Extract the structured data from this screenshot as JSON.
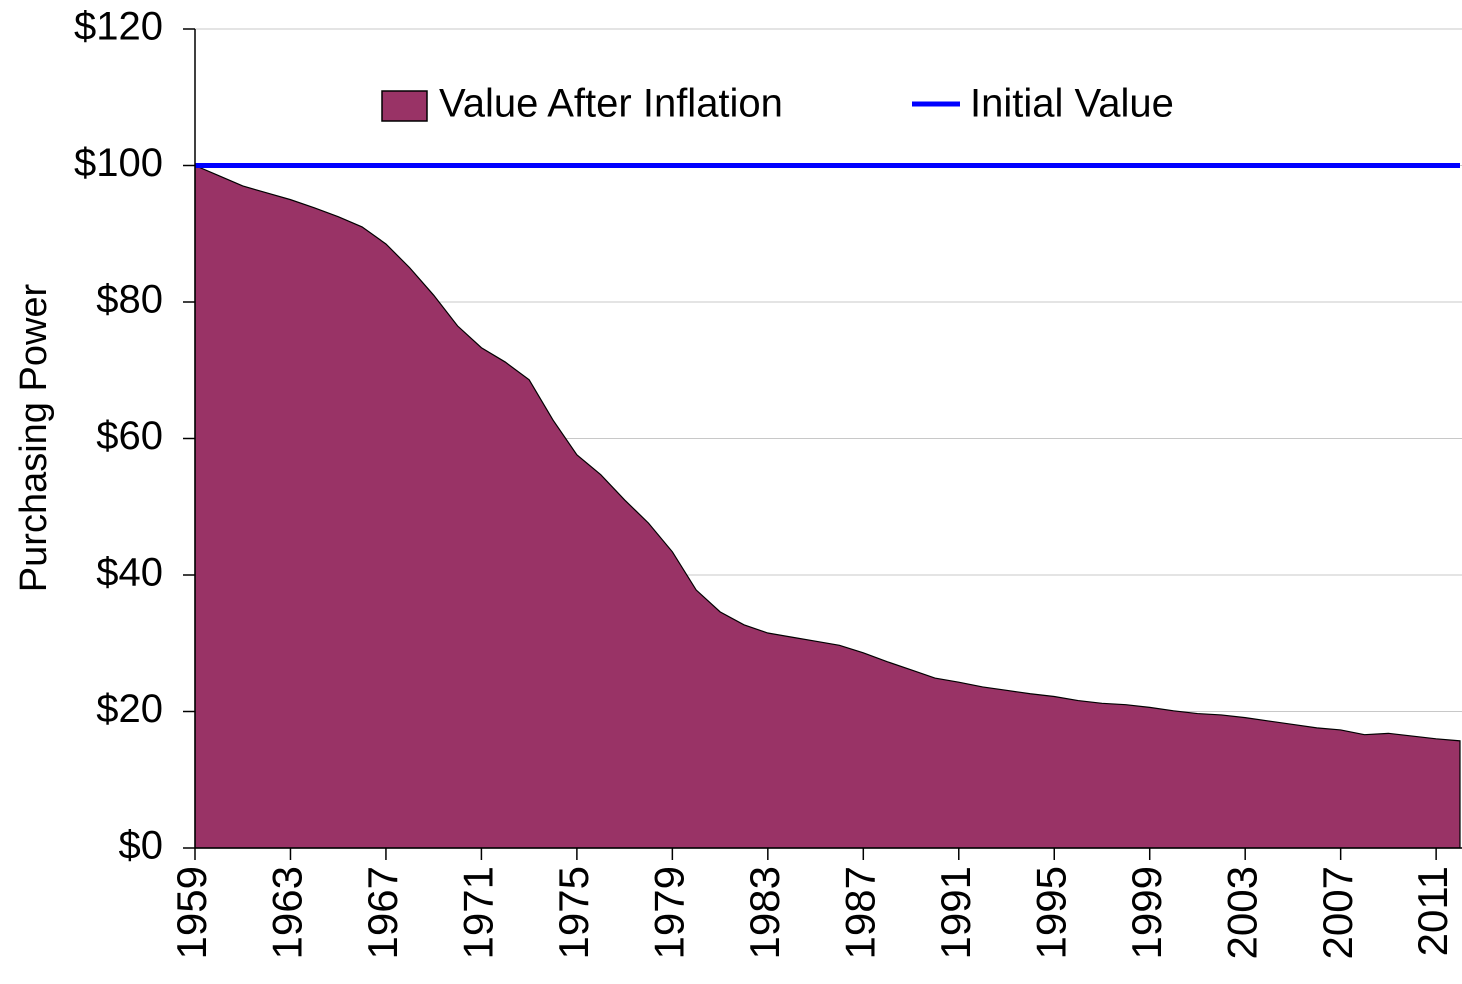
{
  "chart_data": {
    "type": "area",
    "y_label": "Purchasing Power",
    "x": [
      1959,
      1960,
      1961,
      1962,
      1963,
      1964,
      1965,
      1966,
      1967,
      1968,
      1969,
      1970,
      1971,
      1972,
      1973,
      1974,
      1975,
      1976,
      1977,
      1978,
      1979,
      1980,
      1981,
      1982,
      1983,
      1984,
      1985,
      1986,
      1987,
      1988,
      1989,
      1990,
      1991,
      1992,
      1993,
      1994,
      1995,
      1996,
      1997,
      1998,
      1999,
      2000,
      2001,
      2002,
      2003,
      2004,
      2005,
      2006,
      2007,
      2008,
      2009,
      2010,
      2011,
      2012
    ],
    "series": [
      {
        "name": "Value After Inflation",
        "color": "#993366",
        "values": [
          100,
          98.5,
          97,
          96,
          95,
          93.8,
          92.5,
          91,
          88.5,
          85,
          81,
          76.5,
          73.3,
          71.2,
          68.6,
          62.7,
          57.6,
          54.7,
          51,
          47.6,
          43.4,
          37.8,
          34.6,
          32.7,
          31.5,
          30.9,
          30.3,
          29.7,
          28.6,
          27.3,
          26.1,
          24.9,
          24.3,
          23.6,
          23.1,
          22.6,
          22.2,
          21.6,
          21.2,
          21,
          20.6,
          20.1,
          19.7,
          19.5,
          19.1,
          18.6,
          18.1,
          17.6,
          17.3,
          16.6,
          16.8,
          16.4,
          16,
          15.7
        ]
      },
      {
        "name": "Initial Value",
        "color": "#0000ff",
        "values": [
          100,
          100,
          100,
          100,
          100,
          100,
          100,
          100,
          100,
          100,
          100,
          100,
          100,
          100,
          100,
          100,
          100,
          100,
          100,
          100,
          100,
          100,
          100,
          100,
          100,
          100,
          100,
          100,
          100,
          100,
          100,
          100,
          100,
          100,
          100,
          100,
          100,
          100,
          100,
          100,
          100,
          100,
          100,
          100,
          100,
          100,
          100,
          100,
          100,
          100,
          100,
          100,
          100,
          100
        ]
      }
    ],
    "xlim": [
      1959,
      2012
    ],
    "xticks": [
      1959,
      1963,
      1967,
      1971,
      1975,
      1979,
      1983,
      1987,
      1991,
      1995,
      1999,
      2003,
      2007,
      2011
    ],
    "ylim": [
      0,
      120
    ],
    "yticks": [
      {
        "value": 0,
        "label": "$0"
      },
      {
        "value": 20,
        "label": "$20"
      },
      {
        "value": 40,
        "label": "$40"
      },
      {
        "value": 60,
        "label": "$60"
      },
      {
        "value": 80,
        "label": "$80"
      },
      {
        "value": 100,
        "label": "$100"
      },
      {
        "value": 120,
        "label": "$120"
      }
    ],
    "grid": true,
    "legend": "top"
  }
}
